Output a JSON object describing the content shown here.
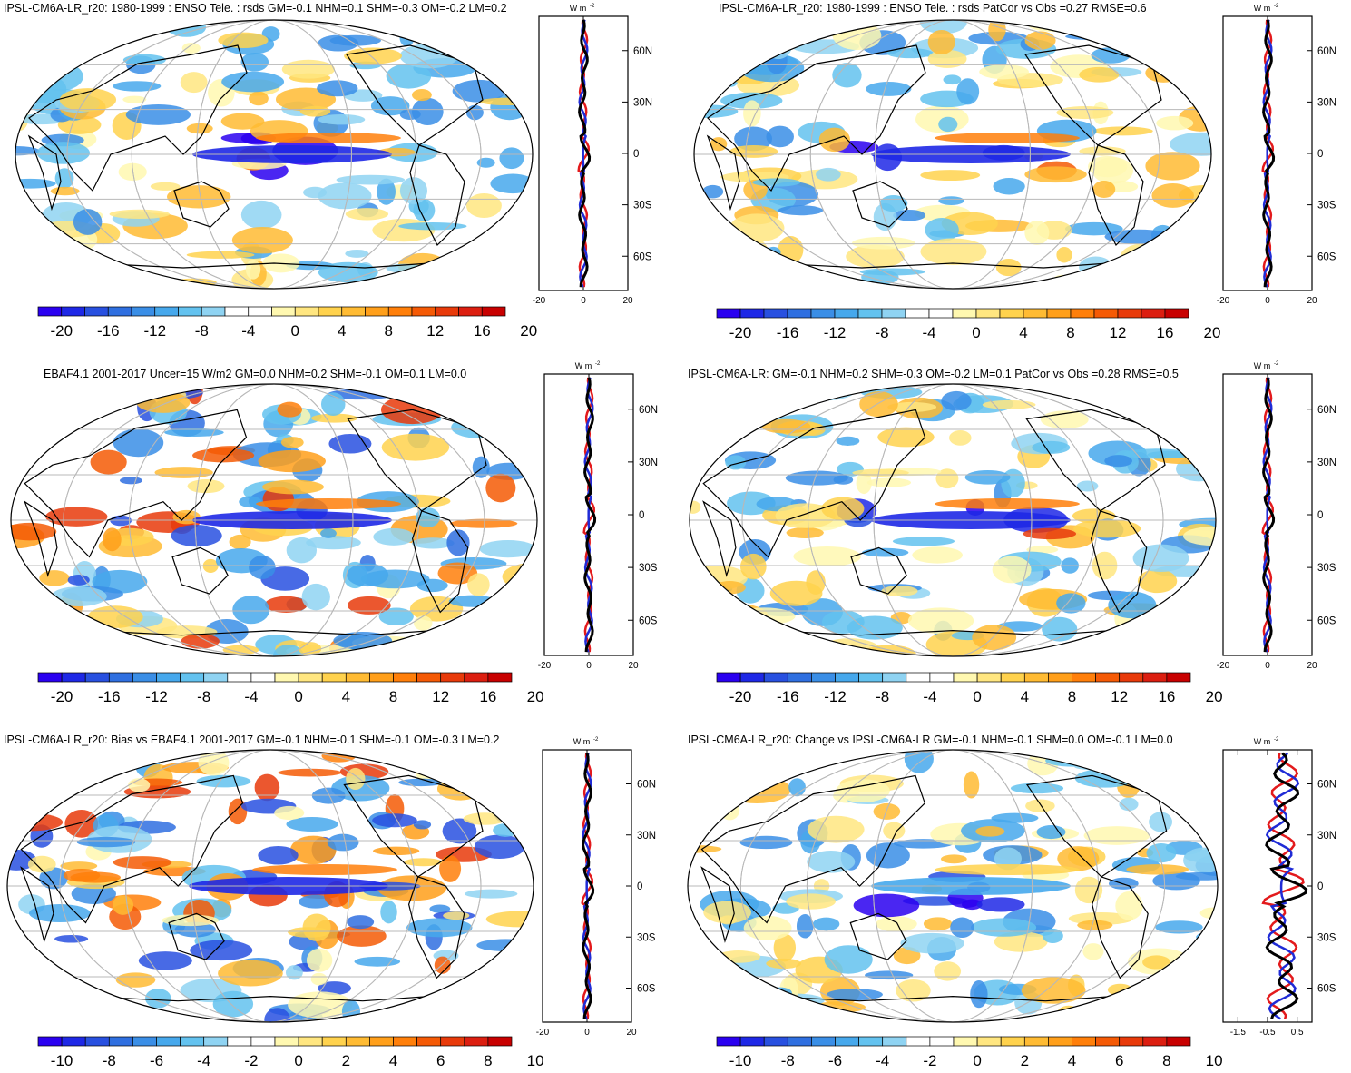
{
  "chart_data": [
    {
      "type": "heatmap",
      "title": "IPSL-CM6A-LR_r20: 1980-1999 : ENSO Tele. : rsds GM=-0.1 NHM=0.1 SHM=-0.3 OM=-0.2 LM=0.2",
      "colorbar_ticks": [
        "-20",
        "-16",
        "-12",
        "-8",
        "-4",
        "0",
        "4",
        "8",
        "12",
        "16",
        "20"
      ],
      "zonal_mean": {
        "unit": "W m",
        "unit_exp": "-2",
        "xticks": [
          "-20",
          "0",
          "20"
        ],
        "xlim": [
          -20,
          20
        ],
        "lat_ticks": [
          "60N",
          "30N",
          "0",
          "30S",
          "60S"
        ],
        "lat_values": [
          60,
          30,
          0,
          -30,
          -60
        ],
        "series_colors": [
          "#e31a1c",
          "#1f2bd6",
          "#000000"
        ],
        "amp": 3
      }
    },
    {
      "type": "heatmap",
      "title": "IPSL-CM6A-LR_r20: 1980-1999 : ENSO Tele. : rsds PatCor vs Obs =0.27 RMSE=0.6",
      "colorbar_ticks": [
        "-20",
        "-16",
        "-12",
        "-8",
        "-4",
        "0",
        "4",
        "8",
        "12",
        "16",
        "20"
      ],
      "zonal_mean": {
        "unit": "W m",
        "unit_exp": "-2",
        "xticks": [
          "-20",
          "0",
          "20"
        ],
        "xlim": [
          -20,
          20
        ],
        "lat_ticks": [
          "60N",
          "30N",
          "0",
          "30S",
          "60S"
        ],
        "lat_values": [
          60,
          30,
          0,
          -30,
          -60
        ],
        "series_colors": [
          "#e31a1c",
          "#1f2bd6",
          "#000000"
        ],
        "amp": 3
      }
    },
    {
      "type": "heatmap",
      "title": "EBAF4.1 2001-2017 Uncer=15 W/m2 GM=0.0 NHM=0.2 SHM=-0.1 OM=0.1 LM=0.0",
      "colorbar_ticks": [
        "-20",
        "-16",
        "-12",
        "-8",
        "-4",
        "0",
        "4",
        "8",
        "12",
        "16",
        "20"
      ],
      "zonal_mean": {
        "unit": "W m",
        "unit_exp": "-2",
        "xticks": [
          "-20",
          "0",
          "20"
        ],
        "xlim": [
          -20,
          20
        ],
        "lat_ticks": [
          "60N",
          "30N",
          "0",
          "30S",
          "60S"
        ],
        "lat_values": [
          60,
          30,
          0,
          -30,
          -60
        ],
        "series_colors": [
          "#e31a1c",
          "#1f2bd6",
          "#000000"
        ],
        "amp": 3
      }
    },
    {
      "type": "heatmap",
      "title": "IPSL-CM6A-LR: GM=-0.1 NHM=0.2 SHM=-0.3 OM=-0.2 LM=0.1 PatCor vs Obs =0.28 RMSE=0.5",
      "colorbar_ticks": [
        "-20",
        "-16",
        "-12",
        "-8",
        "-4",
        "0",
        "4",
        "8",
        "12",
        "16",
        "20"
      ],
      "zonal_mean": {
        "unit": "W m",
        "unit_exp": "-2",
        "xticks": [
          "-20",
          "0",
          "20"
        ],
        "xlim": [
          -20,
          20
        ],
        "lat_ticks": [
          "60N",
          "30N",
          "0",
          "30S",
          "60S"
        ],
        "lat_values": [
          60,
          30,
          0,
          -30,
          -60
        ],
        "series_colors": [
          "#e31a1c",
          "#1f2bd6",
          "#000000"
        ],
        "amp": 3
      }
    },
    {
      "type": "heatmap",
      "title": "IPSL-CM6A-LR_r20: Bias vs EBAF4.1 2001-2017 GM=-0.1 NHM=-0.1 SHM=-0.1 OM=-0.3 LM=0.2",
      "colorbar_ticks": [
        "-10",
        "-8",
        "-6",
        "-4",
        "-2",
        "0",
        "2",
        "4",
        "6",
        "8",
        "10"
      ],
      "zonal_mean": {
        "unit": "W m",
        "unit_exp": "-2",
        "xticks": [
          "-20",
          "0",
          "20"
        ],
        "xlim": [
          -20,
          20
        ],
        "lat_ticks": [
          "60N",
          "30N",
          "0",
          "30S",
          "60S"
        ],
        "lat_values": [
          60,
          30,
          0,
          -30,
          -60
        ],
        "series_colors": [
          "#e31a1c",
          "#1f2bd6",
          "#000000"
        ],
        "amp": 3
      }
    },
    {
      "type": "heatmap",
      "title": "IPSL-CM6A-LR_r20: Change vs IPSL-CM6A-LR GM=-0.1 NHM=-0.1 SHM=0.0 OM=-0.1 LM=0.0",
      "colorbar_ticks": [
        "-10",
        "-8",
        "-6",
        "-4",
        "-2",
        "0",
        "2",
        "4",
        "6",
        "8",
        "10"
      ],
      "zonal_mean": {
        "unit": "W m",
        "unit_exp": "-2",
        "xticks": [
          "-1.5",
          "-0.5",
          "0.5"
        ],
        "xlim": [
          -2,
          1
        ],
        "lat_ticks": [
          "60N",
          "30N",
          "0",
          "30S",
          "60S"
        ],
        "lat_values": [
          60,
          30,
          0,
          -30,
          -60
        ],
        "series_colors": [
          "#e31a1c",
          "#1f2bd6",
          "#000000"
        ],
        "amp": 0.9
      }
    }
  ],
  "palette": [
    "#2a00f0",
    "#1e28e6",
    "#2850e0",
    "#2f6fe0",
    "#3a8ee6",
    "#46a8ec",
    "#63c2ef",
    "#8fd3f2",
    "#ffffff",
    "#ffffff",
    "#fff8b0",
    "#ffe680",
    "#ffd24d",
    "#ffbb33",
    "#ff9f1a",
    "#ff7f0a",
    "#f55a05",
    "#e83a0a",
    "#dc1e10",
    "#c80000"
  ]
}
